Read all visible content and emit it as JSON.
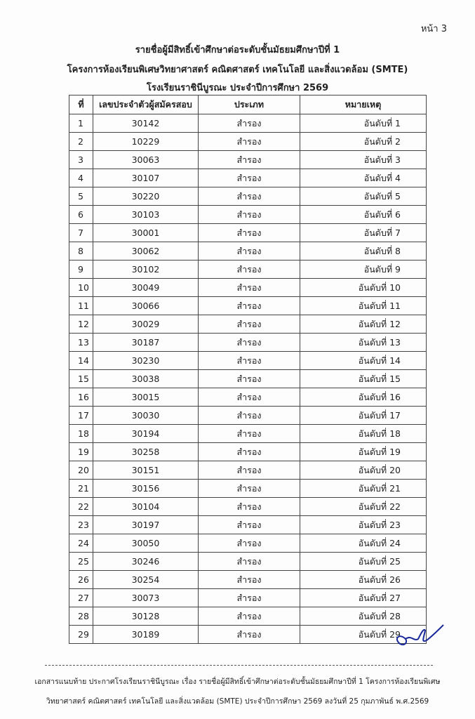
{
  "page_label": "หน้า 3",
  "header": {
    "title_lines": [
      "รายชื่อผู้มีสิทธิ์เข้าศึกษาต่อระดับชั้นมัธยมศึกษาปีที่ 1",
      "โครงการห้องเรียนพิเศษวิทยาศาสตร์ คณิตศาสตร์ เทคโนโลยี และสิ่งแวดล้อม (SMTE)",
      "โรงเรียนราชินีบูรณะ ประจำปีการศึกษา 2569"
    ]
  },
  "table": {
    "columns": [
      "ที่",
      "เลขประจำตัวผู้สมัครสอบ",
      "ประเภท",
      "หมายเหตุ"
    ],
    "rows": [
      [
        "1",
        "30142",
        "สำรอง",
        "อันดับที่ 1"
      ],
      [
        "2",
        "10229",
        "สำรอง",
        "อันดับที่ 2"
      ],
      [
        "3",
        "30063",
        "สำรอง",
        "อันดับที่ 3"
      ],
      [
        "4",
        "30107",
        "สำรอง",
        "อันดับที่ 4"
      ],
      [
        "5",
        "30220",
        "สำรอง",
        "อันดับที่ 5"
      ],
      [
        "6",
        "30103",
        "สำรอง",
        "อันดับที่ 6"
      ],
      [
        "7",
        "30001",
        "สำรอง",
        "อันดับที่ 7"
      ],
      [
        "8",
        "30062",
        "สำรอง",
        "อันดับที่ 8"
      ],
      [
        "9",
        "30102",
        "สำรอง",
        "อันดับที่ 9"
      ],
      [
        "10",
        "30049",
        "สำรอง",
        "อันดับที่ 10"
      ],
      [
        "11",
        "30066",
        "สำรอง",
        "อันดับที่ 11"
      ],
      [
        "12",
        "30029",
        "สำรอง",
        "อันดับที่ 12"
      ],
      [
        "13",
        "30187",
        "สำรอง",
        "อันดับที่ 13"
      ],
      [
        "14",
        "30230",
        "สำรอง",
        "อันดับที่ 14"
      ],
      [
        "15",
        "30038",
        "สำรอง",
        "อันดับที่ 15"
      ],
      [
        "16",
        "30015",
        "สำรอง",
        "อันดับที่ 16"
      ],
      [
        "17",
        "30030",
        "สำรอง",
        "อันดับที่ 17"
      ],
      [
        "18",
        "30194",
        "สำรอง",
        "อันดับที่ 18"
      ],
      [
        "19",
        "30258",
        "สำรอง",
        "อันดับที่ 19"
      ],
      [
        "20",
        "30151",
        "สำรอง",
        "อันดับที่ 20"
      ],
      [
        "21",
        "30156",
        "สำรอง",
        "อันดับที่ 21"
      ],
      [
        "22",
        "30104",
        "สำรอง",
        "อันดับที่ 22"
      ],
      [
        "23",
        "30197",
        "สำรอง",
        "อันดับที่ 23"
      ],
      [
        "24",
        "30050",
        "สำรอง",
        "อันดับที่ 24"
      ],
      [
        "25",
        "30246",
        "สำรอง",
        "อันดับที่ 25"
      ],
      [
        "26",
        "30254",
        "สำรอง",
        "อันดับที่ 26"
      ],
      [
        "27",
        "30073",
        "สำรอง",
        "อันดับที่ 27"
      ],
      [
        "28",
        "30128",
        "สำรอง",
        "อันดับที่ 28"
      ],
      [
        "29",
        "30189",
        "สำรอง",
        "อันดับที่ 29"
      ]
    ]
  },
  "footer": {
    "lines": [
      "เอกสารแนบท้าย ประกาศโรงเรียนราชินีบูรณะ เรื่อง รายชื่อผู้มีสิทธิ์เข้าศึกษาต่อระดับชั้นมัธยมศึกษาปีที่ 1 โครงการห้องเรียนพิเศษ",
      "วิทยาศาสตร์ คณิตศาสตร์ เทคโนโลยี และสิ่งแวดล้อม (SMTE) ประจำปีการศึกษา 2569 ลงวันที่ 25 กุมภาพันธ์ พ.ศ.2569"
    ]
  }
}
